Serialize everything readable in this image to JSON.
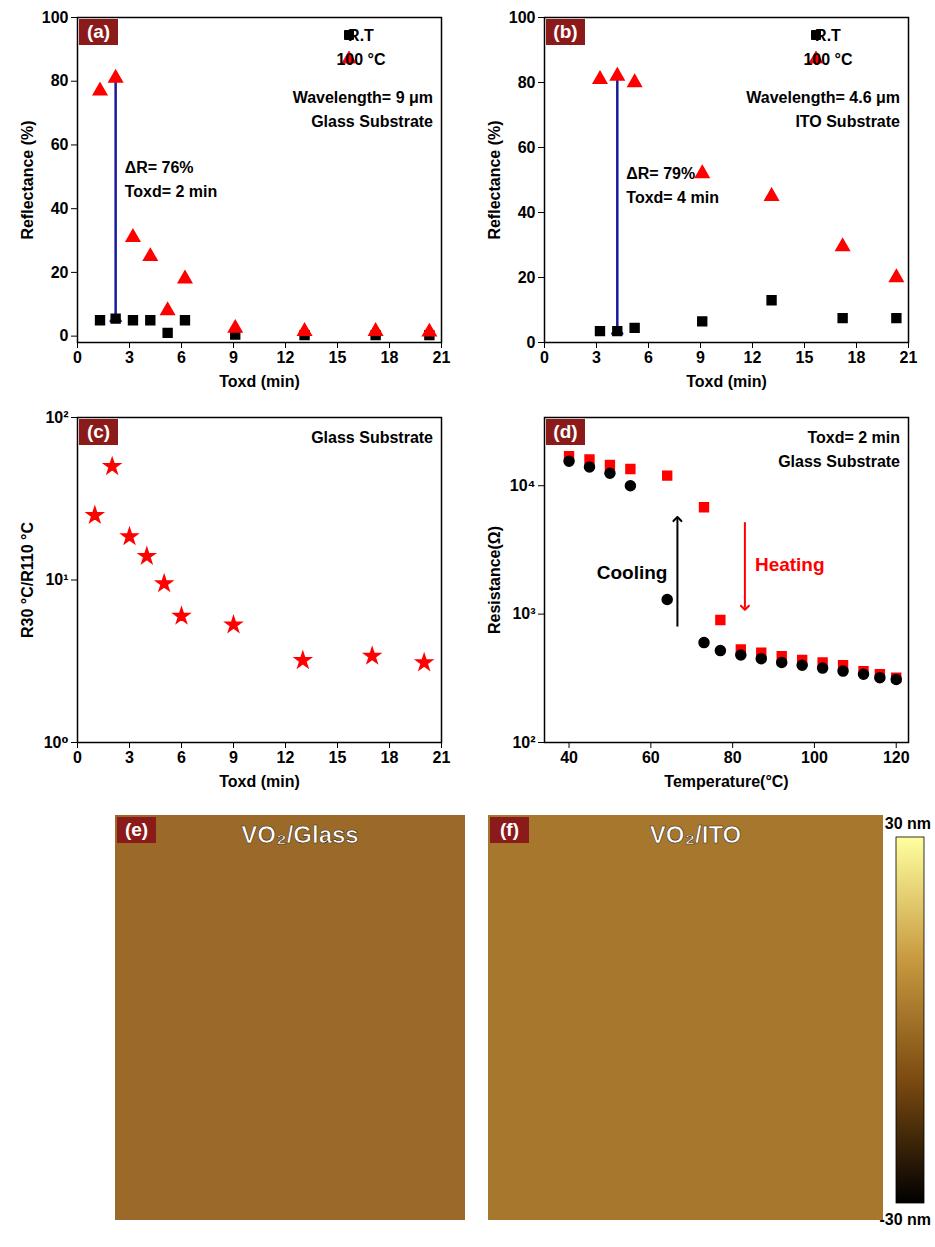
{
  "chart_data": [
    {
      "type": "scatter",
      "title": "(a)",
      "x_label": "Toxd (min)",
      "y_label": "Reflectance (%)",
      "xlim": [
        0,
        21
      ],
      "xticks": [
        0,
        3,
        6,
        9,
        12,
        15,
        18,
        21
      ],
      "ylim": [
        -2,
        100
      ],
      "yticks": [
        0,
        20,
        40,
        60,
        80,
        100
      ],
      "legend": "top-right",
      "x": [
        1.3,
        2.2,
        3.2,
        4.2,
        5.2,
        6.2,
        9.1,
        13.1,
        17.2,
        20.3
      ],
      "series": [
        {
          "name": "R.T",
          "color": "#000000",
          "marker": "square",
          "values": [
            5,
            5.5,
            5,
            5,
            1,
            5,
            0.5,
            0.3,
            0.3,
            0.3
          ]
        },
        {
          "name": "100 °C",
          "color": "#ff0000",
          "marker": "triangle",
          "values": [
            77,
            81,
            31,
            25,
            8,
            18,
            2.5,
            1.5,
            1.5,
            1.3
          ]
        }
      ],
      "annotations": [
        "Wavelength= 9 μm",
        "Glass Substrate"
      ],
      "arrow": {
        "x": 2.2,
        "labels": [
          "ΔR= 76%",
          "Toxd= 2 min"
        ]
      }
    },
    {
      "type": "scatter",
      "title": "(b)",
      "x_label": "Toxd (min)",
      "y_label": "Reflectance (%)",
      "xlim": [
        0,
        21
      ],
      "xticks": [
        0,
        3,
        6,
        9,
        12,
        15,
        18,
        21
      ],
      "ylim": [
        0,
        100
      ],
      "yticks": [
        0,
        20,
        40,
        60,
        80,
        100
      ],
      "legend": "top-right",
      "x": [
        3.2,
        4.2,
        5.2,
        9.1,
        13.1,
        17.2,
        20.3
      ],
      "series": [
        {
          "name": "R.T",
          "color": "#000000",
          "marker": "square",
          "values": [
            3.5,
            3.5,
            4.5,
            6.5,
            13,
            7.5,
            7.5
          ]
        },
        {
          "name": "100 °C",
          "color": "#ff0000",
          "marker": "triangle",
          "values": [
            81,
            82,
            80,
            52,
            45,
            29.5,
            20
          ]
        }
      ],
      "annotations": [
        "Wavelength= 4.6 μm",
        "ITO Substrate"
      ],
      "arrow": {
        "x": 4.2,
        "labels": [
          "ΔR= 79%",
          "Toxd= 4 min"
        ]
      }
    },
    {
      "type": "scatter",
      "title": "(c)",
      "x_label": "Toxd (min)",
      "y_label": "R30 °C/R110 °C",
      "log": "y",
      "xlim": [
        0,
        21
      ],
      "xticks": [
        0,
        3,
        6,
        9,
        12,
        15,
        18,
        21
      ],
      "ylim": [
        1,
        100
      ],
      "yticks": [
        {
          "value": 1,
          "label": "10⁰"
        },
        {
          "value": 10,
          "label": "10¹"
        },
        {
          "value": 100,
          "label": "10²"
        }
      ],
      "x": [
        1,
        2,
        3,
        4,
        5,
        6,
        9,
        13,
        17,
        20
      ],
      "values": [
        25,
        50,
        18.5,
        14,
        9.5,
        6,
        5.3,
        3.2,
        3.4,
        3.1
      ],
      "color": "#ff0000",
      "marker": "star",
      "annotations": [
        "Glass Substrate"
      ]
    },
    {
      "type": "scatter",
      "title": "(d)",
      "x_label": "Temperature(°C)",
      "y_label": "Resistance(Ω)",
      "log": "y",
      "xlim": [
        34,
        123
      ],
      "xticks": [
        40,
        60,
        80,
        100,
        120
      ],
      "ylim": [
        100,
        34000
      ],
      "yticks": [
        {
          "value": 100,
          "label": "10²"
        },
        {
          "value": 1000,
          "label": "10³"
        },
        {
          "value": 10000,
          "label": "10⁴"
        }
      ],
      "x": [
        40,
        45,
        50,
        55,
        64,
        73,
        77,
        82,
        87,
        92,
        97,
        102,
        107,
        112,
        116,
        120
      ],
      "series": [
        {
          "name": "Heating",
          "color": "#ff0000",
          "marker": "square",
          "values": [
            17000,
            16000,
            14500,
            13500,
            12000,
            6800,
            900,
            530,
            500,
            470,
            440,
            420,
            400,
            360,
            340,
            320
          ]
        },
        {
          "name": "Cooling",
          "color": "#000000",
          "marker": "circle",
          "values": [
            15500,
            14000,
            12500,
            10000,
            1300,
            600,
            520,
            480,
            450,
            420,
            400,
            380,
            360,
            340,
            320,
            310
          ]
        }
      ],
      "annotations": [
        "Toxd= 2 min",
        "Glass Substrate"
      ],
      "arrows": [
        {
          "series": "Cooling",
          "x": 66.5,
          "y1": 800,
          "y2": 5500
        },
        {
          "series": "Heating",
          "x": 83,
          "y1": 5200,
          "y2": 1120
        }
      ]
    },
    {
      "type": "image",
      "title": "(e)",
      "label": "VO₂/Glass",
      "color": "#9c6a28"
    },
    {
      "type": "image",
      "title": "(f)",
      "label": "VO₂/ITO",
      "color": "#a8772e",
      "colorbar": {
        "range": [
          -30,
          30
        ],
        "ticks": [
          {
            "value": 30,
            "label": "30 nm"
          },
          {
            "value": -30,
            "label": "-30 nm"
          }
        ],
        "colors": [
          "#000000",
          "#7a4a10",
          "#c89a40",
          "#ffffa0"
        ]
      }
    }
  ]
}
